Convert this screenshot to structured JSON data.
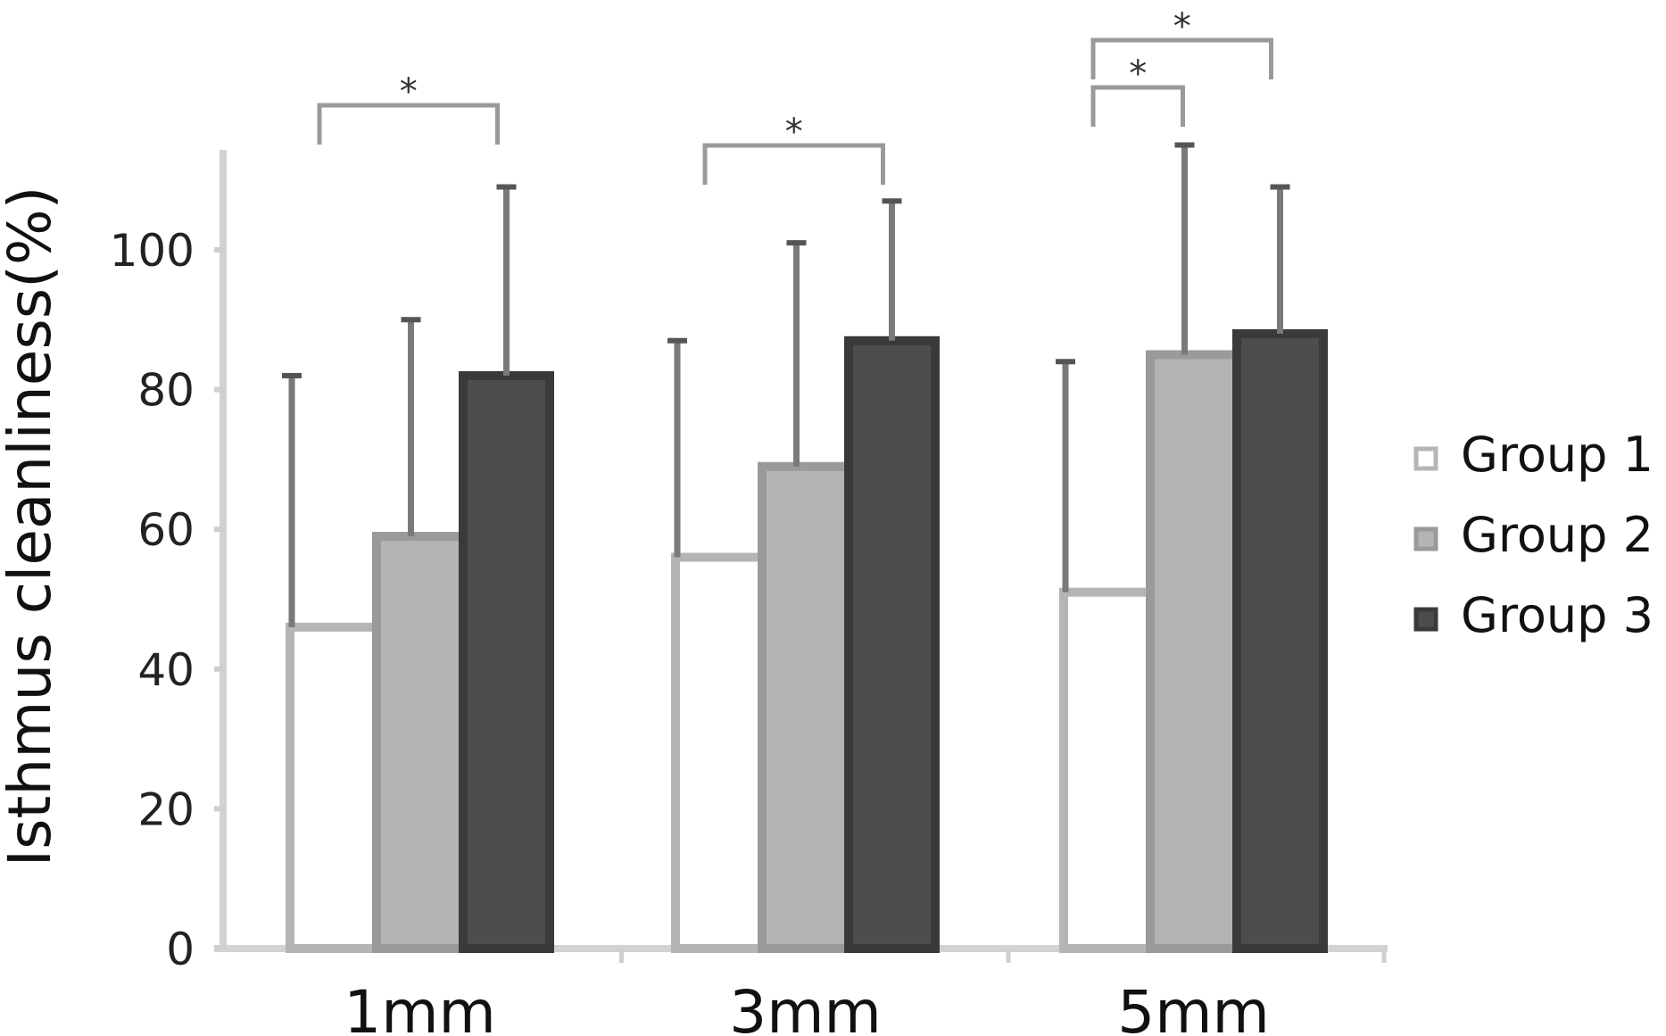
{
  "chart_data": {
    "type": "bar",
    "title": "",
    "xlabel": "",
    "ylabel": "Isthmus cleanliness(%)",
    "categories": [
      "1mm",
      "3mm",
      "5mm"
    ],
    "ylim": [
      0,
      100
    ],
    "yticks": [
      0,
      20,
      40,
      60,
      80,
      100
    ],
    "ytick_labels": [
      "0",
      "20",
      "40",
      "60",
      "80",
      "100"
    ],
    "grid": false,
    "legend_position": "right",
    "series": [
      {
        "name": "Group 1",
        "values": [
          46,
          56,
          51
        ],
        "errors": [
          36,
          31,
          33
        ],
        "color": "#ffffff"
      },
      {
        "name": "Group 2",
        "values": [
          59,
          69,
          85
        ],
        "errors": [
          31,
          32,
          30
        ],
        "color": "#b4b4b4"
      },
      {
        "name": "Group 3",
        "values": [
          82,
          87,
          88
        ],
        "errors": [
          27,
          20,
          21
        ],
        "color": "#4d4d4d"
      }
    ],
    "significance": [
      {
        "category": "1mm",
        "from": "Group 1",
        "to": "Group 3",
        "label": "*"
      },
      {
        "category": "3mm",
        "from": "Group 1",
        "to": "Group 3",
        "label": "*"
      },
      {
        "category": "5mm",
        "from": "Group 1",
        "to": "Group 2",
        "label": "*"
      },
      {
        "category": "5mm",
        "from": "Group 1",
        "to": "Group 3",
        "label": "*"
      }
    ]
  }
}
